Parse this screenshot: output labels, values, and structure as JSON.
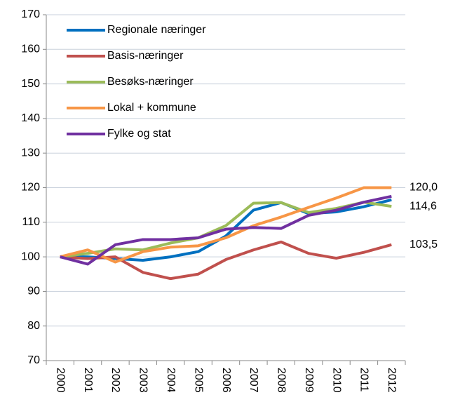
{
  "chart_data": {
    "type": "line",
    "categories": [
      "2000",
      "2001",
      "2002",
      "2003",
      "2004",
      "2005",
      "2006",
      "2007",
      "2008",
      "2009",
      "2010",
      "2011",
      "2012"
    ],
    "series": [
      {
        "name": "Regionale næringer",
        "color": "#0070c0",
        "values": [
          100,
          100,
          99.5,
          99,
          100,
          101.5,
          106,
          113.5,
          115.7,
          112.5,
          113,
          114.5,
          116.5
        ]
      },
      {
        "name": "Basis-næringer",
        "color": "#c0504d",
        "values": [
          100,
          99.5,
          100,
          95.5,
          93.7,
          95,
          99.2,
          102,
          104.3,
          101,
          99.6,
          101.3,
          103.5
        ],
        "value_labels": [
          null,
          null,
          null,
          null,
          null,
          null,
          null,
          null,
          null,
          null,
          null,
          null,
          "103,5"
        ]
      },
      {
        "name": "Besøks-næringer",
        "color": "#9bbb59",
        "values": [
          100,
          101,
          102.3,
          102,
          104,
          105.5,
          109,
          115.5,
          115.7,
          112.8,
          114,
          115.8,
          114.6
        ],
        "value_labels": [
          null,
          null,
          null,
          null,
          null,
          null,
          null,
          null,
          null,
          null,
          null,
          null,
          "114,6"
        ]
      },
      {
        "name": "Lokal + kommune",
        "color": "#f79646",
        "values": [
          100,
          102,
          98.5,
          101.5,
          102.8,
          103.2,
          105.5,
          109,
          111.5,
          114.3,
          117,
          120,
          120
        ],
        "value_labels": [
          null,
          null,
          null,
          null,
          null,
          null,
          null,
          null,
          null,
          null,
          null,
          null,
          "120,0"
        ]
      },
      {
        "name": "Fylke og stat",
        "color": "#7030a0",
        "values": [
          100,
          97.9,
          103.5,
          105,
          105,
          105.5,
          108,
          108.5,
          108.2,
          112,
          113.5,
          115.8,
          117.5
        ]
      }
    ],
    "ylim": [
      70,
      170
    ],
    "yticks": [
      70,
      80,
      90,
      100,
      110,
      120,
      130,
      140,
      150,
      160,
      170
    ],
    "grid": true,
    "legend": "upper left"
  }
}
